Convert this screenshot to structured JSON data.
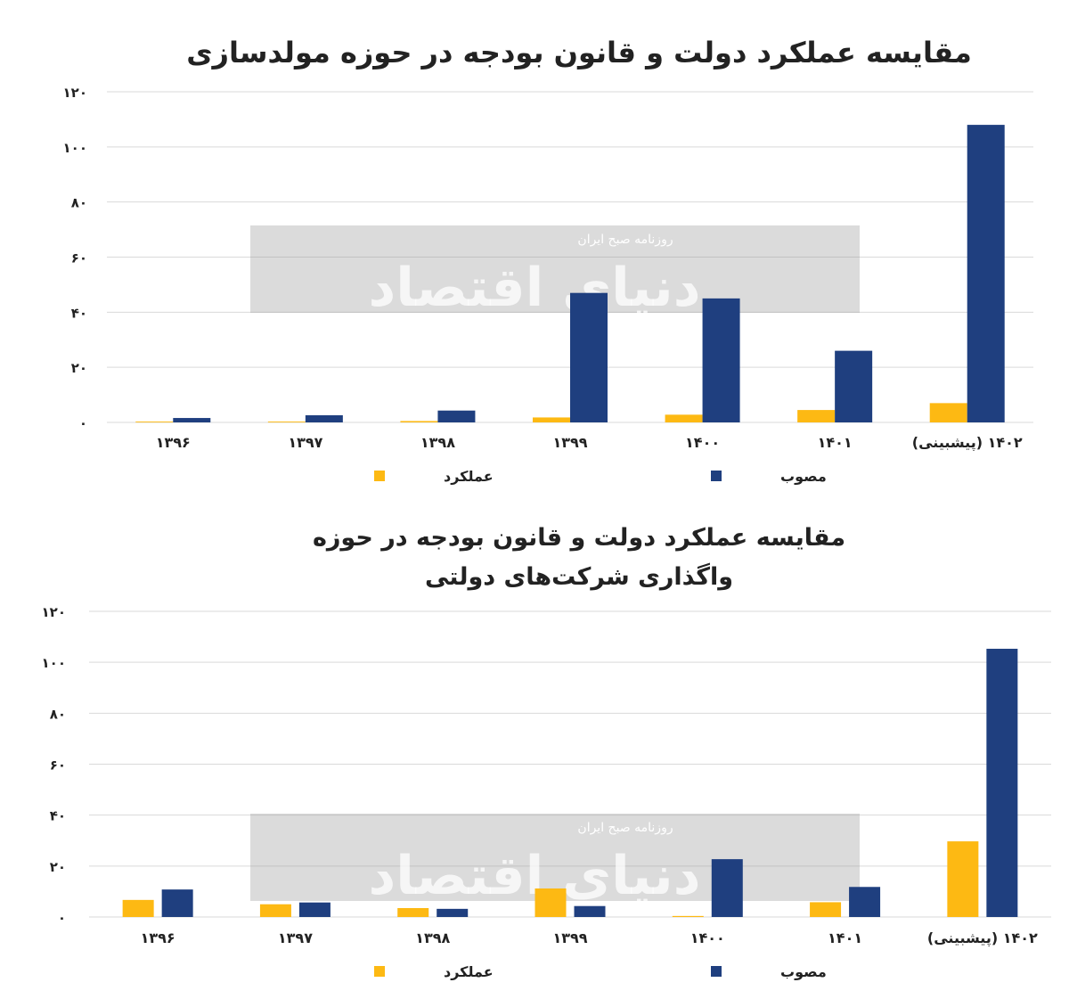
{
  "watermark": {
    "logo_text": "دنیای اقتصاد",
    "label": "روزنامه صبح ایران"
  },
  "chart_data": [
    {
      "type": "bar",
      "title": [
        "مقایسه عملکرد دولت و قانون بودجه در حوزه  مولدسازی"
      ],
      "categories": [
        "۱۳۹۶",
        "۱۳۹۷",
        "۱۳۹۸",
        "۱۳۹۹",
        "۱۴۰۰",
        "۱۴۰۱",
        "۱۴۰۲ (پیشبینی)"
      ],
      "series": [
        {
          "name": "عملکرد",
          "color": "#FDB913",
          "values": [
            0.3,
            0.3,
            0.5,
            1.8,
            2.8,
            4.5,
            7
          ]
        },
        {
          "name": "مصوب",
          "color": "#1F3F7F",
          "values": [
            1.6,
            2.6,
            4.3,
            47,
            45,
            26,
            108
          ]
        }
      ],
      "ylim": [
        0,
        120
      ],
      "yticks": [
        0,
        20,
        40,
        60,
        80,
        100,
        120
      ],
      "ytick_labels": [
        "۰",
        "۲۰",
        "۴۰",
        "۶۰",
        "۸۰",
        "۱۰۰",
        "۱۲۰"
      ],
      "grid": true,
      "legend": "bottom"
    },
    {
      "type": "bar",
      "title": [
        "مقایسه عملکرد دولت و قانون بودجه در حوزه",
        "واگذاری شرکت‌های دولتی"
      ],
      "categories": [
        "۱۳۹۶",
        "۱۳۹۷",
        "۱۳۹۸",
        "۱۳۹۹",
        "۱۴۰۰",
        "۱۴۰۱",
        "۱۴۰۲ (پیشبینی)"
      ],
      "series": [
        {
          "name": "عملکرد",
          "color": "#FDB913",
          "values": [
            6.7,
            5,
            3.5,
            11.2,
            0.4,
            5.8,
            29.7
          ]
        },
        {
          "name": "مصوب",
          "color": "#1F3F7F",
          "values": [
            10.8,
            5.7,
            3.2,
            4.3,
            22.7,
            11.8,
            105.3
          ]
        }
      ],
      "ylim": [
        0,
        120
      ],
      "yticks": [
        0,
        20,
        40,
        60,
        80,
        100,
        120
      ],
      "ytick_labels": [
        "۰",
        "۲۰",
        "۴۰",
        "۶۰",
        "۸۰",
        "۱۰۰",
        "۱۲۰"
      ],
      "grid": true,
      "legend": "bottom"
    }
  ]
}
